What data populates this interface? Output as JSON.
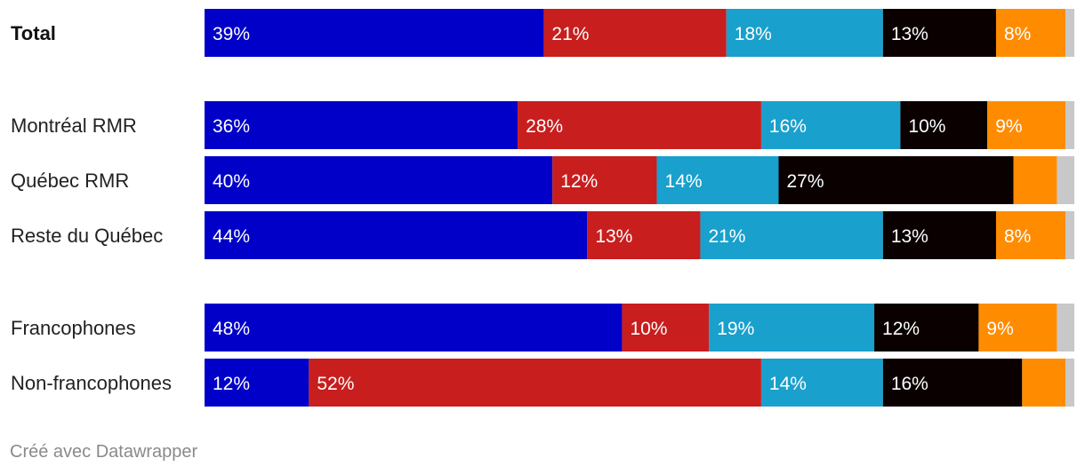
{
  "chart_data": {
    "type": "bar",
    "orientation": "horizontal",
    "stacked": true,
    "categories": [
      "Total",
      "Montréal RMR",
      "Québec RMR",
      "Reste du Québec",
      "Francophones",
      "Non-francophones"
    ],
    "groups": [
      [
        "Total"
      ],
      [
        "Montréal RMR",
        "Québec RMR",
        "Reste du Québec"
      ],
      [
        "Francophones",
        "Non-francophones"
      ]
    ],
    "bold_categories": [
      "Total"
    ],
    "series": [
      {
        "name": "series-1",
        "color": "#0000c8",
        "label_color": "#ffffff",
        "values": [
          39,
          36,
          40,
          44,
          48,
          12
        ],
        "labels": [
          "39%",
          "36%",
          "40%",
          "44%",
          "48%",
          "12%"
        ]
      },
      {
        "name": "series-2",
        "color": "#c81e1e",
        "label_color": "#ffffff",
        "values": [
          21,
          28,
          12,
          13,
          10,
          52
        ],
        "labels": [
          "21%",
          "28%",
          "12%",
          "13%",
          "10%",
          "52%"
        ]
      },
      {
        "name": "series-3",
        "color": "#19a0cd",
        "label_color": "#ffffff",
        "values": [
          18,
          16,
          14,
          21,
          19,
          14
        ],
        "labels": [
          "18%",
          "16%",
          "14%",
          "21%",
          "19%",
          "14%"
        ]
      },
      {
        "name": "series-4",
        "color": "#0a0000",
        "label_color": "#ffffff",
        "values": [
          13,
          10,
          27,
          13,
          12,
          16
        ],
        "labels": [
          "13%",
          "10%",
          "27%",
          "13%",
          "12%",
          "16%"
        ]
      },
      {
        "name": "series-5",
        "color": "#ff8c00",
        "label_color": "#ffffff",
        "values": [
          8,
          9,
          5,
          8,
          9,
          5
        ],
        "labels": [
          "8%",
          "9%",
          "",
          "8%",
          "9%",
          ""
        ]
      },
      {
        "name": "series-6",
        "color": "#c8c8c8",
        "label_color": "#ffffff",
        "values": [
          1,
          1,
          2,
          1,
          2,
          1
        ],
        "labels": [
          "",
          "",
          "",
          "",
          "",
          ""
        ]
      }
    ],
    "xlim": [
      0,
      100
    ]
  },
  "footer": {
    "credit": "Créé avec Datawrapper"
  }
}
